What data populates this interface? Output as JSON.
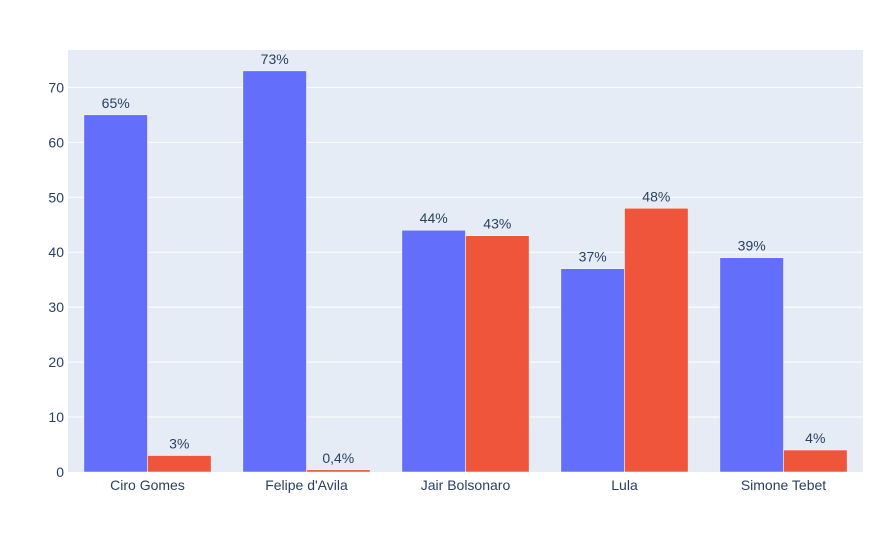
{
  "chart_data": {
    "type": "bar",
    "title": "",
    "xlabel": "",
    "ylabel": "",
    "categories": [
      "Ciro Gomes",
      "Felipe d'Avila",
      "Jair Bolsonaro",
      "Lula",
      "Simone Tebet"
    ],
    "series": [
      {
        "values": [
          65,
          73,
          44,
          37,
          39
        ],
        "labels": [
          "65%",
          "73%",
          "44%",
          "37%",
          "39%"
        ],
        "color": "#636efa"
      },
      {
        "values": [
          3,
          0.4,
          43,
          48,
          4
        ],
        "labels": [
          "3%",
          "0,4%",
          "43%",
          "48%",
          "4%"
        ],
        "color": "#ef553b"
      }
    ],
    "ylim": [
      0,
      76.8
    ],
    "yticks": [
      0,
      10,
      20,
      30,
      40,
      50,
      60,
      70
    ],
    "grid": true,
    "legend": "none",
    "plot_background": "#e5ecf6",
    "grid_color": "#ffffff",
    "text_color": "#2a3f5f"
  }
}
